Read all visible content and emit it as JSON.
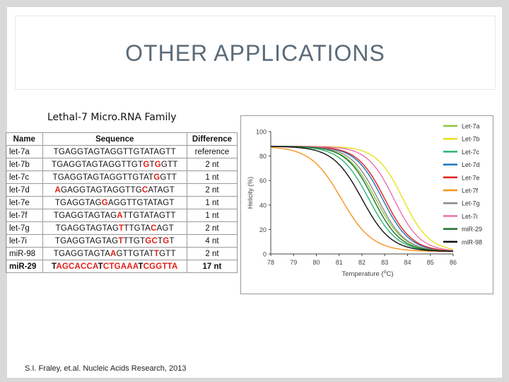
{
  "slide": {
    "title": "OTHER APPLICATIONS",
    "citation": "S.I. Fraley, et.al. Nucleic Acids Research, 2013"
  },
  "table": {
    "title": "Lethal-7 Micro.RNA Family",
    "headers": [
      "Name",
      "Sequence",
      "Difference"
    ],
    "rows": [
      {
        "name": "let-7a",
        "sequence": [
          [
            "TGAGGTAGTAGGTTGTATAGTT",
            false
          ]
        ],
        "difference": "reference",
        "bold": false
      },
      {
        "name": "let-7b",
        "sequence": [
          [
            "TGAGGTAGTAGGTTGT",
            false
          ],
          [
            "G",
            true
          ],
          [
            "T",
            false
          ],
          [
            "G",
            true
          ],
          [
            "GTT",
            false
          ]
        ],
        "difference": "2 nt",
        "bold": false
      },
      {
        "name": "let-7c",
        "sequence": [
          [
            "TGAGGTAGTAGGTTGTAT",
            false
          ],
          [
            "G",
            true
          ],
          [
            "GTT",
            false
          ]
        ],
        "difference": "1 nt",
        "bold": false
      },
      {
        "name": "let-7d",
        "sequence": [
          [
            "A",
            true
          ],
          [
            "GAGGTAGTAGGTTG",
            false
          ],
          [
            "C",
            true
          ],
          [
            "ATAGT",
            false
          ]
        ],
        "difference": "2 nt",
        "bold": false
      },
      {
        "name": "let-7e",
        "sequence": [
          [
            "TGAGGTAG",
            false
          ],
          [
            "G",
            true
          ],
          [
            "AGGTTGTATAGT",
            false
          ]
        ],
        "difference": "1 nt",
        "bold": false
      },
      {
        "name": "let-7f",
        "sequence": [
          [
            "TGAGGTAGTAG",
            false
          ],
          [
            "A",
            true
          ],
          [
            "TTGTATAGTT",
            false
          ]
        ],
        "difference": "1 nt",
        "bold": false
      },
      {
        "name": "let-7g",
        "sequence": [
          [
            "TGAGGTAGTAG",
            false
          ],
          [
            "T",
            true
          ],
          [
            "TTGTA",
            false
          ],
          [
            "C",
            true
          ],
          [
            "AGT",
            false
          ]
        ],
        "difference": "2 nt",
        "bold": false
      },
      {
        "name": "let-7i",
        "sequence": [
          [
            "TGAGGTAGTAG",
            false
          ],
          [
            "T",
            true
          ],
          [
            "TTGT",
            false
          ],
          [
            "GC",
            true
          ],
          [
            "T",
            false
          ],
          [
            "G",
            true
          ],
          [
            "T",
            false
          ]
        ],
        "difference": "4 nt",
        "bold": false
      },
      {
        "name": "miR-98",
        "sequence": [
          [
            "TGAGGTAGTA",
            false
          ],
          [
            "A",
            true
          ],
          [
            "GTTGTAT",
            false
          ],
          [
            "T",
            true
          ],
          [
            "GTT",
            false
          ]
        ],
        "difference": "2 nt",
        "bold": false
      },
      {
        "name": "miR-29",
        "sequence": [
          [
            "T",
            false
          ],
          [
            "AGCACCA",
            true
          ],
          [
            "T",
            false
          ],
          [
            "CTGAAA",
            true
          ],
          [
            "T",
            false
          ],
          [
            "CGGTTA",
            true
          ]
        ],
        "difference": "17 nt",
        "bold": true
      }
    ]
  },
  "chart_data": {
    "type": "line",
    "title": "",
    "xlabel": "Temperature (°C)",
    "xlabel_parts": {
      "before": "Temperature (",
      "sup": "o",
      "after": "C)"
    },
    "ylabel": "Helicity (%)",
    "xlim": [
      78,
      86
    ],
    "ylim": [
      0,
      100
    ],
    "xticks": [
      78,
      79,
      80,
      81,
      82,
      83,
      84,
      85,
      86
    ],
    "yticks": [
      0,
      20,
      40,
      60,
      80,
      100
    ],
    "ytick_labels": [
      "0",
      "20",
      "40",
      "60",
      "80",
      "100"
    ],
    "grid": false,
    "legend_position": "right",
    "series": [
      {
        "name": "Let-7a",
        "color": "#8dc63f",
        "tm": 82.6,
        "width": 0.62
      },
      {
        "name": "Let-7b",
        "color": "#e8e21d",
        "tm": 83.8,
        "width": 0.58
      },
      {
        "name": "Let-7c",
        "color": "#2bb673",
        "tm": 82.3,
        "width": 0.62
      },
      {
        "name": "Let-7d",
        "color": "#1b75bc",
        "tm": 82.9,
        "width": 0.6
      },
      {
        "name": "Let-7e",
        "color": "#e0201a",
        "tm": 83.0,
        "width": 0.6
      },
      {
        "name": "Let-7f",
        "color": "#f7941d",
        "tm": 81.1,
        "width": 0.68
      },
      {
        "name": "Let-7g",
        "color": "#8a8a8a",
        "tm": 82.7,
        "width": 0.6
      },
      {
        "name": "Let-7i",
        "color": "#ec6fae",
        "tm": 83.4,
        "width": 0.58
      },
      {
        "name": "miR-29",
        "color": "#1f6e2e",
        "tm": 82.5,
        "width": 0.6
      },
      {
        "name": "miR-98",
        "color": "#111111",
        "tm": 82.0,
        "width": 0.64
      }
    ]
  }
}
